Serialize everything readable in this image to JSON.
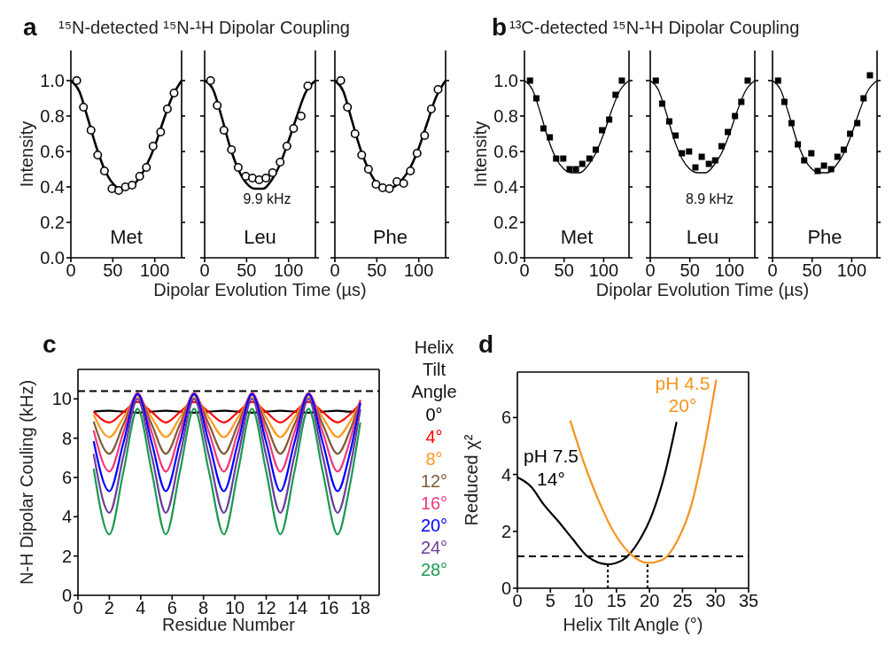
{
  "chart_data": [
    {
      "type": "scatter",
      "title": "¹⁵N-detected ¹⁵N-¹H Dipolar Coupling",
      "ylabel": "Intensity",
      "annotations": [
        "a",
        "Met"
      ],
      "xlim": [
        0,
        132
      ],
      "xticks": [
        0,
        50,
        100
      ],
      "ylim": [
        0,
        1.17
      ],
      "yticks": [
        {
          "value": 0,
          "label": "0.0"
        },
        {
          "value": 0.2,
          "label": "0.2"
        },
        {
          "value": 0.4,
          "label": "0.4"
        },
        {
          "value": 0.6,
          "label": "0.6"
        },
        {
          "value": 0.8,
          "label": "0.8"
        },
        {
          "value": 1,
          "label": "1.0"
        }
      ],
      "series": [
        {
          "type": "scatter",
          "marker": "circle",
          "color": "#000000",
          "x": [
            7,
            15,
            24,
            32,
            40,
            49,
            57,
            65,
            73,
            82,
            90,
            98,
            107,
            115,
            123
          ],
          "values": [
            1.0,
            0.85,
            0.72,
            0.58,
            0.49,
            0.39,
            0.38,
            0.4,
            0.41,
            0.46,
            0.51,
            0.63,
            0.71,
            0.84,
            0.93
          ]
        },
        {
          "type": "line",
          "color": "#000000",
          "x": [
            0,
            10,
            20,
            30,
            40,
            50,
            60,
            70,
            80,
            90,
            100,
            110,
            120,
            132
          ],
          "values": [
            1.0,
            0.94,
            0.79,
            0.63,
            0.5,
            0.42,
            0.39,
            0.4,
            0.44,
            0.52,
            0.63,
            0.77,
            0.9,
            1.0
          ]
        }
      ]
    },
    {
      "type": "scatter",
      "xlabel": "Dipolar Evolution Time (µs)",
      "annotations": [
        "Leu",
        "9.9 kHz"
      ],
      "tick_labels": "x",
      "xlim": [
        0,
        132
      ],
      "xticks": [
        0,
        50,
        100
      ],
      "ylim": [
        0,
        1.17
      ],
      "yticks": [
        0,
        0.2,
        0.4,
        0.6,
        0.8,
        1
      ],
      "series": [
        {
          "type": "scatter",
          "marker": "circle",
          "color": "#000000",
          "x": [
            7,
            15,
            23,
            32,
            40,
            49,
            57,
            65,
            73,
            81,
            90,
            98,
            106,
            115,
            123
          ],
          "values": [
            1.0,
            0.86,
            0.72,
            0.61,
            0.51,
            0.46,
            0.45,
            0.44,
            0.45,
            0.48,
            0.54,
            0.63,
            0.73,
            0.8,
            0.97
          ]
        },
        {
          "type": "line",
          "color": "#000000",
          "x": [
            0,
            10,
            20,
            30,
            40,
            50,
            60,
            70,
            80,
            90,
            100,
            110,
            120,
            132
          ],
          "values": [
            1.0,
            0.95,
            0.8,
            0.63,
            0.5,
            0.42,
            0.39,
            0.39,
            0.44,
            0.53,
            0.66,
            0.8,
            0.93,
            1.0
          ]
        }
      ]
    },
    {
      "type": "scatter",
      "annotations": [
        "Phe"
      ],
      "tick_labels": "x",
      "xlim": [
        0,
        132
      ],
      "xticks": [
        0,
        50,
        100
      ],
      "ylim": [
        0,
        1.17
      ],
      "yticks": [
        0,
        0.2,
        0.4,
        0.6,
        0.8,
        1
      ],
      "series": [
        {
          "type": "scatter",
          "marker": "circle",
          "color": "#000000",
          "x": [
            7,
            15,
            24,
            32,
            40,
            49,
            57,
            65,
            74,
            82,
            90,
            98,
            107,
            115,
            123
          ],
          "values": [
            1.0,
            0.85,
            0.7,
            0.58,
            0.5,
            0.415,
            0.395,
            0.39,
            0.43,
            0.42,
            0.49,
            0.59,
            0.69,
            0.84,
            0.95
          ]
        },
        {
          "type": "line",
          "color": "#000000",
          "x": [
            0,
            10,
            20,
            30,
            40,
            50,
            60,
            70,
            80,
            90,
            100,
            110,
            120,
            132
          ],
          "values": [
            1.0,
            0.94,
            0.78,
            0.62,
            0.5,
            0.42,
            0.39,
            0.4,
            0.44,
            0.51,
            0.62,
            0.76,
            0.9,
            1.0
          ]
        }
      ]
    },
    {
      "type": "scatter",
      "title": "¹³C-detected ¹⁵N-¹H Dipolar Coupling",
      "ylabel": "Intensity",
      "annotations": [
        "b",
        "Met"
      ],
      "xlim": [
        0,
        132
      ],
      "xticks": [
        0,
        50,
        100
      ],
      "ylim": [
        0,
        1.17
      ],
      "yticks": [
        {
          "value": 0,
          "label": "0.0"
        },
        {
          "value": 0.2,
          "label": "0.2"
        },
        {
          "value": 0.4,
          "label": "0.4"
        },
        {
          "value": 0.6,
          "label": "0.6"
        },
        {
          "value": 0.8,
          "label": "0.8"
        },
        {
          "value": 1,
          "label": "1.0"
        }
      ],
      "series": [
        {
          "type": "scatter",
          "marker": "square",
          "color": "#000000",
          "x": [
            7,
            15,
            24,
            32,
            40,
            49,
            57,
            65,
            73,
            82,
            90,
            98,
            107,
            115,
            123
          ],
          "values": [
            1.0,
            0.9,
            0.73,
            0.68,
            0.56,
            0.56,
            0.5,
            0.5,
            0.53,
            0.56,
            0.61,
            0.72,
            0.78,
            0.92,
            1.0
          ]
        },
        {
          "type": "line",
          "color": "#000000",
          "x": [
            0,
            10,
            20,
            30,
            40,
            50,
            60,
            70,
            80,
            90,
            100,
            110,
            120,
            132
          ],
          "values": [
            1.0,
            0.95,
            0.82,
            0.67,
            0.56,
            0.5,
            0.48,
            0.48,
            0.52,
            0.59,
            0.7,
            0.83,
            0.94,
            1.0
          ]
        }
      ]
    },
    {
      "type": "scatter",
      "xlabel": "Dipolar Evolution Time (µs)",
      "annotations": [
        "Leu",
        "8.9 kHz"
      ],
      "tick_labels": "x",
      "xlim": [
        0,
        132
      ],
      "xticks": [
        0,
        50,
        100
      ],
      "ylim": [
        0,
        1.17
      ],
      "yticks": [
        0,
        0.2,
        0.4,
        0.6,
        0.8,
        1
      ],
      "series": [
        {
          "type": "scatter",
          "marker": "square",
          "color": "#000000",
          "x": [
            7,
            15,
            24,
            32,
            40,
            49,
            57,
            65,
            74,
            82,
            90,
            98,
            107,
            115,
            123
          ],
          "values": [
            1.0,
            0.87,
            0.77,
            0.69,
            0.59,
            0.6,
            0.51,
            0.57,
            0.53,
            0.55,
            0.63,
            0.71,
            0.8,
            0.88,
            1.0
          ]
        },
        {
          "type": "line",
          "color": "#000000",
          "x": [
            0,
            10,
            20,
            30,
            40,
            50,
            60,
            70,
            80,
            90,
            100,
            110,
            120,
            132
          ],
          "values": [
            1.0,
            0.95,
            0.82,
            0.67,
            0.56,
            0.5,
            0.48,
            0.48,
            0.52,
            0.59,
            0.7,
            0.83,
            0.94,
            1.0
          ]
        }
      ]
    },
    {
      "type": "scatter",
      "annotations": [
        "Phe"
      ],
      "tick_labels": "x",
      "xlim": [
        0,
        132
      ],
      "xticks": [
        0,
        50,
        100
      ],
      "ylim": [
        0,
        1.17
      ],
      "yticks": [
        0,
        0.2,
        0.4,
        0.6,
        0.8,
        1
      ],
      "series": [
        {
          "type": "scatter",
          "marker": "square",
          "color": "#000000",
          "x": [
            7,
            15,
            24,
            32,
            40,
            49,
            57,
            65,
            74,
            82,
            90,
            98,
            107,
            115,
            123
          ],
          "values": [
            1.0,
            0.88,
            0.76,
            0.64,
            0.55,
            0.59,
            0.49,
            0.52,
            0.5,
            0.57,
            0.61,
            0.7,
            0.76,
            0.9,
            1.03
          ]
        },
        {
          "type": "line",
          "color": "#000000",
          "x": [
            0,
            10,
            20,
            30,
            40,
            50,
            60,
            70,
            80,
            90,
            100,
            110,
            120,
            132
          ],
          "values": [
            1.0,
            0.95,
            0.82,
            0.67,
            0.56,
            0.5,
            0.48,
            0.48,
            0.52,
            0.59,
            0.7,
            0.83,
            0.94,
            1.0
          ]
        }
      ]
    },
    {
      "type": "line",
      "xlabel": "Residue Number",
      "ylabel": "N-H Dipolar Couling (kHz)",
      "annotations": [
        "c"
      ],
      "legend": "right",
      "legend_title": "Helix Tilt Angle",
      "xlim": [
        0,
        19.2
      ],
      "xticks": [
        0,
        2,
        4,
        6,
        8,
        10,
        12,
        14,
        16,
        18
      ],
      "ylim": [
        0,
        11.5
      ],
      "yticks": [
        0,
        2,
        4,
        6,
        8,
        10
      ],
      "ref_lines": [
        {
          "axis": "y",
          "value": 10.4,
          "line_style": "dashed",
          "color": "#000000"
        }
      ],
      "x": [
        1,
        2,
        2.9,
        3.8,
        4.7,
        5.6,
        6.5,
        7.4,
        8.35,
        9.3,
        10.2,
        11.1,
        12,
        12.9,
        13.8,
        14.7,
        15.6,
        16.55,
        17.3,
        18
      ],
      "series": [
        {
          "name": "0°",
          "color": "#000000",
          "values": [
            9.35,
            9.4,
            9.35,
            9.3,
            9.35,
            9.4,
            9.35,
            9.3,
            9.35,
            9.4,
            9.35,
            9.3,
            9.35,
            9.4,
            9.35,
            9.3,
            9.35,
            9.4,
            9.35,
            9.35
          ]
        },
        {
          "name": "4°",
          "color": "#ff0000",
          "values": [
            9.35,
            8.8,
            9.33,
            9.85,
            9.33,
            8.8,
            9.33,
            9.85,
            9.33,
            8.8,
            9.33,
            9.85,
            9.33,
            8.8,
            9.33,
            9.85,
            9.33,
            8.8,
            9.19,
            9.76
          ]
        },
        {
          "name": "8°",
          "color": "#ff9a1f",
          "values": [
            9.2,
            8.05,
            9.05,
            10.05,
            9.05,
            8.05,
            9.05,
            10.05,
            9.05,
            8.05,
            9.05,
            10.05,
            9.05,
            8.05,
            9.05,
            10.05,
            9.05,
            8.05,
            8.79,
            9.87
          ]
        },
        {
          "name": "12°",
          "color": "#7f5a3a",
          "values": [
            8.85,
            7.2,
            8.7,
            10.2,
            8.7,
            7.2,
            8.7,
            10.2,
            8.7,
            7.2,
            8.7,
            10.2,
            8.7,
            7.2,
            8.7,
            10.2,
            8.7,
            7.2,
            8.31,
            9.93
          ]
        },
        {
          "name": "16°",
          "color": "#f0387a",
          "values": [
            8.4,
            6.3,
            8.3,
            10.3,
            8.3,
            6.3,
            8.3,
            10.3,
            8.3,
            6.3,
            8.3,
            10.3,
            8.3,
            6.3,
            8.3,
            10.3,
            8.3,
            6.3,
            7.78,
            9.94
          ]
        },
        {
          "name": "20°",
          "color": "#0000ff",
          "values": [
            7.85,
            5.3,
            7.78,
            10.25,
            7.78,
            5.3,
            7.78,
            10.25,
            7.78,
            5.3,
            7.78,
            10.25,
            7.78,
            5.3,
            7.78,
            10.25,
            7.78,
            5.3,
            7.13,
            9.8
          ]
        },
        {
          "name": "24°",
          "color": "#6a3d9a",
          "values": [
            7.2,
            4.2,
            7.1,
            10.0,
            7.1,
            4.2,
            7.1,
            10.0,
            7.1,
            4.2,
            7.1,
            10.0,
            7.1,
            4.2,
            7.1,
            10.0,
            7.1,
            4.2,
            6.35,
            9.48
          ]
        },
        {
          "name": "28°",
          "color": "#1a9a50",
          "values": [
            6.45,
            3.1,
            6.3,
            9.5,
            6.3,
            3.1,
            6.3,
            9.5,
            6.3,
            3.1,
            6.3,
            9.5,
            6.3,
            3.1,
            6.3,
            9.5,
            6.3,
            3.1,
            5.47,
            8.8
          ]
        }
      ]
    },
    {
      "type": "line",
      "xlabel": "Helix Tilt Angle (°)",
      "ylabel": "Reduced χ²",
      "annotations": [
        "d",
        "14°",
        "20°"
      ],
      "xlim": [
        0,
        35
      ],
      "xticks": [
        0,
        5,
        10,
        15,
        20,
        25,
        30,
        35
      ],
      "ylim": [
        0,
        7.6
      ],
      "yticks": [
        0,
        2,
        4,
        6
      ],
      "ref_lines": [
        {
          "axis": "y",
          "value": 1.12,
          "line_style": "dashed",
          "color": "#000000"
        },
        {
          "axis": "x",
          "value": 13.7,
          "line_style": "dotted",
          "color": "#000000"
        },
        {
          "axis": "x",
          "value": 19.7,
          "line_style": "dotted",
          "color": "#000000"
        }
      ],
      "series": [
        {
          "name": "pH 7.5",
          "color": "#000000",
          "x": [
            0,
            2.15,
            3.9,
            6.2,
            8.4,
            10.7,
            13.7,
            16,
            18.3,
            20.5,
            22.3,
            24.1
          ],
          "values": [
            3.9,
            3.55,
            2.97,
            2.35,
            1.72,
            1.1,
            0.84,
            1.0,
            1.62,
            2.66,
            4.0,
            5.85
          ]
        },
        {
          "name": "pH 4.5",
          "color": "#f7931e",
          "x": [
            8,
            10.2,
            12.5,
            14.7,
            17.4,
            19.7,
            21.9,
            24.1,
            26.4,
            28.2,
            30.1
          ],
          "values": [
            5.9,
            4.33,
            2.97,
            1.93,
            1.15,
            0.89,
            0.99,
            1.62,
            2.97,
            4.85,
            7.33
          ]
        }
      ]
    }
  ]
}
